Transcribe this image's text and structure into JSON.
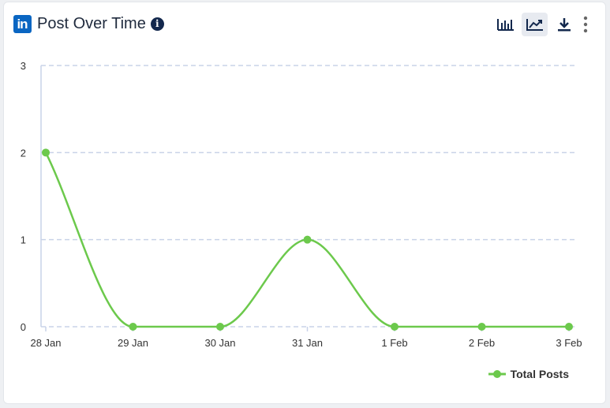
{
  "widget": {
    "logo_text": "in",
    "title": "Post Over Time",
    "info_icon": "info-icon",
    "toolbar": [
      {
        "name": "bar-chart-button",
        "icon": "bar-chart-icon",
        "active": false
      },
      {
        "name": "line-chart-button",
        "icon": "line-chart-icon",
        "active": true
      },
      {
        "name": "download-button",
        "icon": "download-icon",
        "active": false
      },
      {
        "name": "more-options-button",
        "icon": "vertical-dots-icon",
        "active": false
      }
    ]
  },
  "colors": {
    "series": "#6cc94c",
    "grid": "#c9d3e8",
    "axis": "#c9d3e8",
    "text": "#333333",
    "title": "#1f2a3d",
    "icon": "#13284d",
    "linkedin": "#0a66c2"
  },
  "chart_data": {
    "type": "line",
    "categories": [
      "28 Jan",
      "29 Jan",
      "30 Jan",
      "31 Jan",
      "1 Feb",
      "2 Feb",
      "3 Feb"
    ],
    "yticks": [
      "0",
      "1",
      "2",
      "3"
    ],
    "ylim": [
      0,
      3
    ],
    "grid": true,
    "smooth": true,
    "legend_position": "bottom-right",
    "series": [
      {
        "name": "Total Posts",
        "values": [
          2,
          0,
          0,
          1,
          0,
          0,
          0
        ]
      }
    ]
  }
}
